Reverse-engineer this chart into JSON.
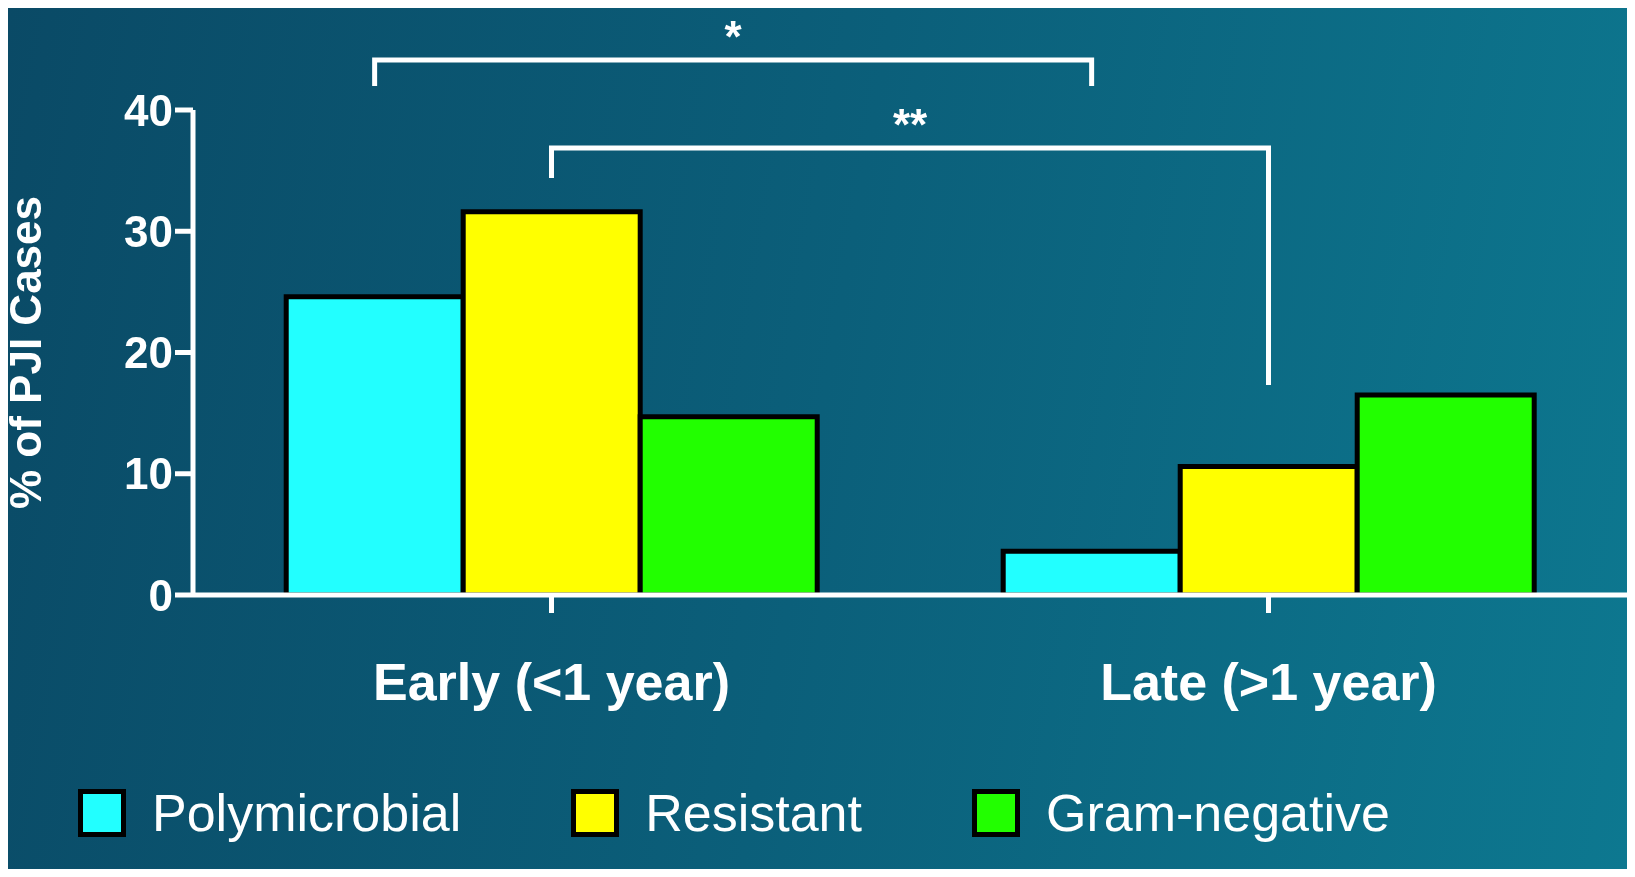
{
  "chart_data": {
    "type": "bar",
    "ylabel": "% of PJI Cases",
    "categories": [
      "Early (<1 year)",
      "Late (>1 year)"
    ],
    "series": [
      {
        "name": "Polymicrobial",
        "color": "#22ffff",
        "values": [
          24.6,
          3.6
        ]
      },
      {
        "name": "Resistant",
        "color": "#ffff00",
        "values": [
          31.6,
          10.6
        ]
      },
      {
        "name": "Gram-negative",
        "color": "#22ff00",
        "values": [
          14.7,
          16.5
        ]
      }
    ],
    "ylim": [
      0,
      40
    ],
    "yticks": [
      0,
      10,
      20,
      30,
      40
    ],
    "legend": "bottom",
    "annotations": [
      "*",
      "**"
    ]
  }
}
